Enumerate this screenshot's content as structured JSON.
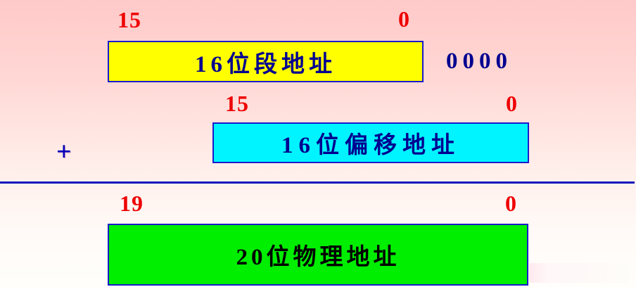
{
  "segment_row": {
    "high_bit_label": "15",
    "low_bit_label": "0",
    "box_label": "16位段地址",
    "appended_zeros": "0000"
  },
  "offset_row": {
    "high_bit_label": "15",
    "low_bit_label": "0",
    "box_label": "16位偏移地址"
  },
  "operator": "+",
  "physical_row": {
    "high_bit_label": "19",
    "low_bit_label": "0",
    "box_label": "20位物理地址"
  },
  "colors": {
    "background_top": "#ffc9c9",
    "background_bottom": "#fffefb",
    "segment_box_fill": "#ffff00",
    "offset_box_fill": "#00f4ff",
    "physical_box_fill": "#00ee00",
    "box_border": "#1a1acc",
    "bit_label_red": "#ee0000",
    "address_text_navy": "#000090",
    "physical_text_black": "#000000",
    "sum_line_blue": "#1313bd"
  }
}
